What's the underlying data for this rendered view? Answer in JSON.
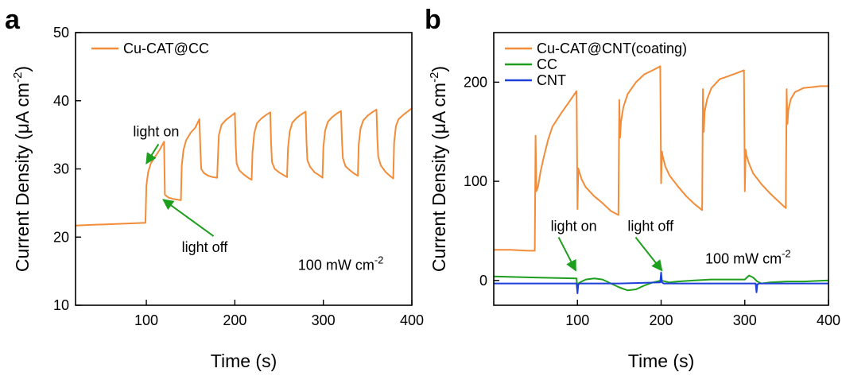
{
  "chart_data": [
    {
      "panel": "a",
      "type": "line",
      "xlabel": "Time (s)",
      "ylabel_main": "Current Density (",
      "ylabel_unit": "μA cm",
      "ylabel_sup": "-2",
      "ylabel_end": ")",
      "xlim": [
        20,
        400
      ],
      "ylim": [
        10,
        50
      ],
      "xticks": [
        100,
        200,
        300,
        400
      ],
      "yticks": [
        10,
        20,
        30,
        40,
        50
      ],
      "grid": false,
      "legend_position": "top-left",
      "series": [
        {
          "name": "Cu-CAT@CC",
          "color": "#F28C38",
          "x": [
            20,
            40,
            60,
            80,
            99,
            100,
            102,
            105,
            110,
            115,
            120,
            121,
            125,
            130,
            135,
            139,
            140,
            142,
            145,
            150,
            155,
            160,
            161,
            162,
            165,
            170,
            175,
            180,
            181,
            182,
            185,
            190,
            195,
            200,
            201,
            202,
            205,
            210,
            215,
            219,
            220,
            222,
            225,
            230,
            235,
            240,
            241,
            242,
            245,
            250,
            255,
            259,
            260,
            262,
            265,
            270,
            275,
            280,
            281,
            282,
            285,
            290,
            295,
            299,
            300,
            302,
            305,
            310,
            315,
            320,
            321,
            322,
            325,
            330,
            335,
            339,
            340,
            342,
            345,
            350,
            355,
            360,
            361,
            362,
            365,
            370,
            375,
            379,
            380,
            382,
            385,
            390,
            395,
            400
          ],
          "y": [
            21.7,
            21.8,
            21.9,
            22.0,
            22.1,
            27.5,
            29.5,
            30.8,
            31.8,
            32.8,
            34.0,
            26.2,
            25.8,
            25.6,
            25.5,
            25.4,
            30.5,
            32.8,
            34.2,
            35.3,
            36.0,
            37.3,
            33.0,
            30.0,
            29.4,
            29.0,
            28.8,
            28.7,
            32.0,
            35.0,
            36.5,
            37.2,
            37.7,
            38.2,
            33.5,
            30.8,
            29.8,
            29.2,
            28.7,
            28.4,
            32.5,
            35.3,
            36.7,
            37.4,
            37.9,
            38.3,
            33.7,
            31.0,
            30.0,
            29.5,
            29.1,
            28.8,
            33.0,
            35.5,
            36.8,
            37.5,
            38.0,
            38.4,
            34.0,
            31.3,
            30.3,
            29.5,
            29.1,
            28.7,
            33.2,
            35.6,
            36.9,
            37.6,
            38.1,
            38.5,
            34.2,
            31.6,
            30.4,
            29.8,
            29.3,
            29.0,
            33.6,
            35.9,
            37.1,
            37.8,
            38.3,
            38.7,
            34.5,
            31.8,
            30.5,
            29.6,
            29.0,
            28.6,
            33.9,
            36.3,
            37.3,
            37.9,
            38.4,
            38.9
          ]
        }
      ],
      "annotations": [
        {
          "text": "light on",
          "x": 85,
          "y": 34.8,
          "arrow_to": [
            100,
            30.8
          ]
        },
        {
          "text": "light off",
          "x": 140,
          "y": 17.8,
          "arrow_to": [
            119,
            25.5
          ]
        },
        {
          "text": "100 mW cm",
          "sup": "-2",
          "x": 368,
          "y": 15.2
        }
      ]
    },
    {
      "panel": "b",
      "type": "line",
      "xlabel": "Time (s)",
      "ylabel_main": "Current Density (",
      "ylabel_unit": "μA cm",
      "ylabel_sup": "-2",
      "ylabel_end": ")",
      "xlim": [
        0,
        400
      ],
      "ylim": [
        -25,
        250
      ],
      "xticks": [
        100,
        200,
        300,
        400
      ],
      "yticks": [
        0,
        100,
        200
      ],
      "grid": false,
      "legend_position": "top-left",
      "series": [
        {
          "name": "Cu-CAT@CNT(coating)",
          "color": "#F28C38",
          "x": [
            0,
            20,
            40,
            49,
            50,
            51,
            53,
            56,
            60,
            65,
            70,
            80,
            90,
            99,
            100,
            101,
            102,
            105,
            110,
            120,
            130,
            140,
            149,
            150,
            151,
            152,
            155,
            160,
            170,
            180,
            190,
            199,
            200,
            201,
            202,
            205,
            210,
            220,
            230,
            240,
            249,
            250,
            251,
            252,
            255,
            260,
            270,
            280,
            290,
            299,
            300,
            301,
            302,
            305,
            310,
            320,
            330,
            340,
            349,
            350,
            351,
            352,
            355,
            360,
            370,
            380,
            390,
            400
          ],
          "y": [
            31,
            31,
            30,
            30,
            146,
            90,
            95,
            110,
            125,
            142,
            155,
            168,
            180,
            191,
            72,
            113,
            110,
            102,
            94,
            85,
            78,
            70,
            66,
            182,
            144,
            160,
            175,
            188,
            200,
            208,
            212,
            216,
            98,
            130,
            125,
            115,
            106,
            95,
            85,
            77,
            71,
            193,
            150,
            170,
            183,
            194,
            203,
            206,
            209,
            212,
            90,
            132,
            126,
            118,
            108,
            97,
            88,
            80,
            73,
            193,
            158,
            172,
            183,
            190,
            194,
            195,
            196,
            196
          ]
        },
        {
          "name": "CC",
          "color": "#1E9E1E",
          "x": [
            0,
            50,
            99,
            100,
            101,
            105,
            110,
            120,
            130,
            140,
            150,
            160,
            170,
            180,
            190,
            200,
            210,
            220,
            240,
            260,
            280,
            300,
            305,
            310,
            315,
            320,
            330,
            350,
            370,
            400
          ],
          "y": [
            4,
            3,
            2,
            -10,
            -3,
            -1,
            1,
            2,
            1,
            -3,
            -7,
            -10,
            -9,
            -5,
            -2,
            0,
            -2,
            -1,
            0,
            1,
            1,
            1,
            5,
            3,
            -1,
            -3,
            -2,
            -1,
            -1,
            0
          ]
        },
        {
          "name": "CNT",
          "color": "#1F3FD9",
          "x": [
            0,
            50,
            99,
            100,
            101,
            103,
            150,
            199,
            200,
            201,
            203,
            250,
            300,
            313,
            314,
            315,
            317,
            350,
            400
          ],
          "y": [
            -3,
            -3,
            -3,
            -13,
            -4,
            -3,
            -3,
            -2,
            8,
            -2,
            -3,
            -3,
            -3,
            -3,
            -12,
            -4,
            -3,
            -3,
            -3
          ]
        }
      ],
      "annotations": [
        {
          "text": "light on",
          "x": 68,
          "y": 50,
          "arrow_to": [
            98,
            10
          ]
        },
        {
          "text": "light off",
          "x": 160,
          "y": 50,
          "arrow_to": [
            201,
            10
          ]
        },
        {
          "text": "100 mW cm",
          "sup": "-2",
          "x": 355,
          "y": 17
        }
      ]
    }
  ]
}
